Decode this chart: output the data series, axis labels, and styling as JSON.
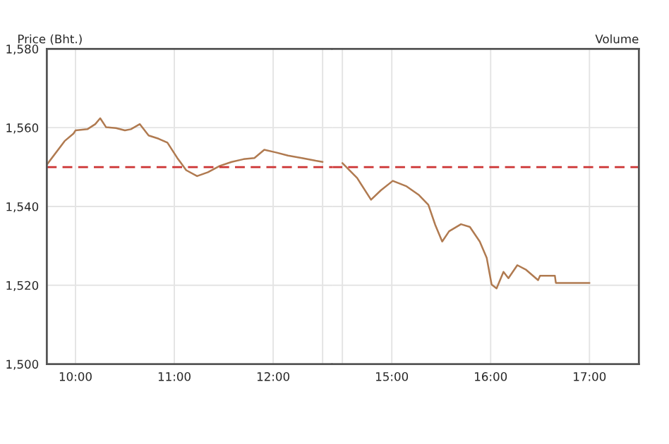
{
  "chart_data": [
    {
      "type": "line",
      "ylabel": "Price (Bht.)",
      "xlim": [
        9.71,
        12.6
      ],
      "ylim": [
        1500,
        1580
      ],
      "xticks": [
        {
          "value": 10,
          "label": "10:00"
        },
        {
          "value": 11,
          "label": "11:00"
        },
        {
          "value": 12,
          "label": "12:00"
        },
        {
          "value": 12.5,
          "label": null
        }
      ],
      "yticks": [
        {
          "value": 1500,
          "label": "1,500"
        },
        {
          "value": 1520,
          "label": "1,520"
        },
        {
          "value": 1540,
          "label": "1,540"
        },
        {
          "value": 1560,
          "label": "1,560"
        },
        {
          "value": 1580,
          "label": "1,580"
        }
      ],
      "grid": true,
      "marker": "none",
      "line_style": "solid",
      "ref_lines": [
        {
          "axis": "y",
          "value": 1550,
          "label": null,
          "color": "#cc3333",
          "line_style": "dashed"
        }
      ],
      "series": [
        {
          "color": "#b07a50",
          "x": [
            9.71,
            9.89,
            9.98,
            10.0,
            10.12,
            10.2,
            10.25,
            10.31,
            10.41,
            10.5,
            10.56,
            10.65,
            10.74,
            10.84,
            10.93,
            11.03,
            11.12,
            11.23,
            11.34,
            11.46,
            11.58,
            11.7,
            11.81,
            11.91,
            12.03,
            12.15,
            12.29,
            12.43,
            12.5
          ],
          "values": [
            1550.6,
            1556.6,
            1558.5,
            1559.3,
            1559.6,
            1560.9,
            1562.4,
            1560.1,
            1559.9,
            1559.3,
            1559.6,
            1560.9,
            1558.0,
            1557.2,
            1556.2,
            1552.3,
            1549.2,
            1547.7,
            1548.7,
            1550.3,
            1551.3,
            1552.0,
            1552.3,
            1554.4,
            1553.7,
            1552.9,
            1552.3,
            1551.6,
            1551.3
          ]
        }
      ]
    },
    {
      "type": "line",
      "y2label": "Volume",
      "tick_labels": "x",
      "xlim": [
        14.4,
        17.5
      ],
      "ylim": [
        1500,
        1580
      ],
      "xticks": [
        {
          "value": 14.5,
          "label": null
        },
        {
          "value": 15,
          "label": "15:00"
        },
        {
          "value": 16,
          "label": "16:00"
        },
        {
          "value": 17,
          "label": "17:00"
        }
      ],
      "yticks": [
        1500,
        1520,
        1540,
        1560,
        1580
      ],
      "grid": true,
      "marker": "none",
      "line_style": "solid",
      "ref_lines": [
        {
          "axis": "y",
          "value": 1550,
          "label": null,
          "color": "#cc3333",
          "line_style": "dashed"
        }
      ],
      "series": [
        {
          "color": "#b07a50",
          "x": [
            14.5,
            14.65,
            14.79,
            14.89,
            15.01,
            15.15,
            15.27,
            15.37,
            15.44,
            15.51,
            15.58,
            15.7,
            15.79,
            15.89,
            15.96,
            16.01,
            16.06,
            16.13,
            16.18,
            16.27,
            16.36,
            16.48,
            16.5,
            16.65,
            16.66,
            17.0
          ],
          "values": [
            1551.0,
            1547.2,
            1541.7,
            1544.1,
            1546.5,
            1545.1,
            1543.0,
            1540.4,
            1535.3,
            1531.1,
            1533.7,
            1535.5,
            1534.8,
            1531.1,
            1527.0,
            1520.2,
            1519.2,
            1523.4,
            1521.8,
            1525.1,
            1523.9,
            1521.3,
            1522.4,
            1522.4,
            1520.6,
            1520.6
          ]
        }
      ]
    }
  ]
}
